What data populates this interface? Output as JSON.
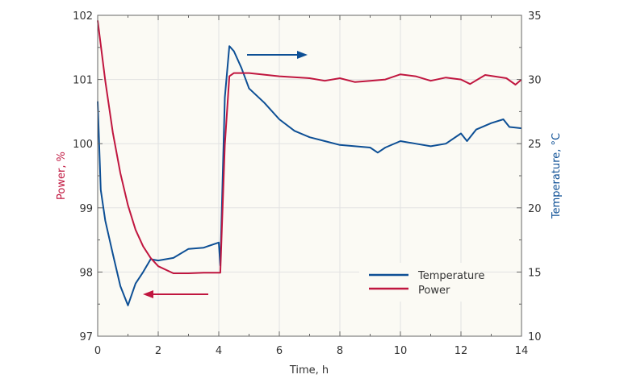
{
  "chart_data": {
    "type": "line",
    "title": "",
    "xlabel": "Time, h",
    "ylabel_left": "Power, %",
    "ylabel_right": "Temperature, °C",
    "xlim": [
      0,
      14
    ],
    "ylim_left": [
      97,
      102
    ],
    "ylim_right": [
      10,
      35
    ],
    "x_ticks": [
      "0",
      "2",
      "4",
      "6",
      "8",
      "10",
      "12",
      "14"
    ],
    "y_ticks_left": [
      "97",
      "98",
      "99",
      "100",
      "101",
      "102"
    ],
    "y_ticks_right": [
      "10",
      "15",
      "20",
      "25",
      "30",
      "35"
    ],
    "grid": true,
    "legend_position": "bottom-right",
    "colors": {
      "temperature": "#0d4f95",
      "power": "#c0163f",
      "background": "#fbfaf4"
    },
    "series": [
      {
        "name": "Temperature",
        "axis": "right",
        "x": [
          0,
          0.1,
          0.25,
          0.5,
          0.75,
          1.0,
          1.25,
          1.5,
          1.75,
          2,
          2.5,
          3,
          3.5,
          4,
          4.05,
          4.2,
          4.35,
          4.5,
          4.75,
          5,
          5.5,
          6,
          6.5,
          7,
          7.5,
          8,
          8.5,
          9,
          9.25,
          9.5,
          10,
          10.5,
          11,
          11.5,
          12,
          12.2,
          12.5,
          13,
          13.4,
          13.6,
          14
        ],
        "y": [
          28.3,
          21.4,
          19.0,
          16.4,
          13.9,
          12.4,
          14.1,
          15.0,
          16.0,
          15.9,
          16.1,
          16.8,
          16.9,
          17.3,
          15.5,
          28.6,
          32.6,
          32.2,
          30.9,
          29.3,
          28.2,
          26.9,
          26.0,
          25.5,
          25.2,
          24.9,
          24.8,
          24.7,
          24.3,
          24.7,
          25.2,
          25.0,
          24.8,
          25.0,
          25.8,
          25.2,
          26.1,
          26.6,
          26.9,
          26.3,
          26.2
        ]
      },
      {
        "name": "Power",
        "axis": "left",
        "x": [
          0,
          0.25,
          0.5,
          0.75,
          1,
          1.25,
          1.5,
          1.75,
          2,
          2.5,
          3,
          3.5,
          4.05,
          4.2,
          4.35,
          4.5,
          5,
          6,
          7,
          7.5,
          8,
          8.5,
          9,
          9.5,
          10,
          10.5,
          11,
          11.5,
          12,
          12.3,
          12.8,
          13.5,
          13.8,
          14
        ],
        "y": [
          101.92,
          100.98,
          100.17,
          99.54,
          99.04,
          98.66,
          98.4,
          98.22,
          98.09,
          97.98,
          97.98,
          97.99,
          97.99,
          99.98,
          101.05,
          101.1,
          101.1,
          101.05,
          101.02,
          100.98,
          101.02,
          100.96,
          100.98,
          101.0,
          101.08,
          101.05,
          100.98,
          101.03,
          101.0,
          100.93,
          101.07,
          101.02,
          100.92,
          101.0
        ]
      }
    ],
    "annotations": [
      {
        "type": "arrow",
        "series": "Power",
        "direction": "left"
      },
      {
        "type": "arrow",
        "series": "Temperature",
        "direction": "right"
      }
    ]
  }
}
